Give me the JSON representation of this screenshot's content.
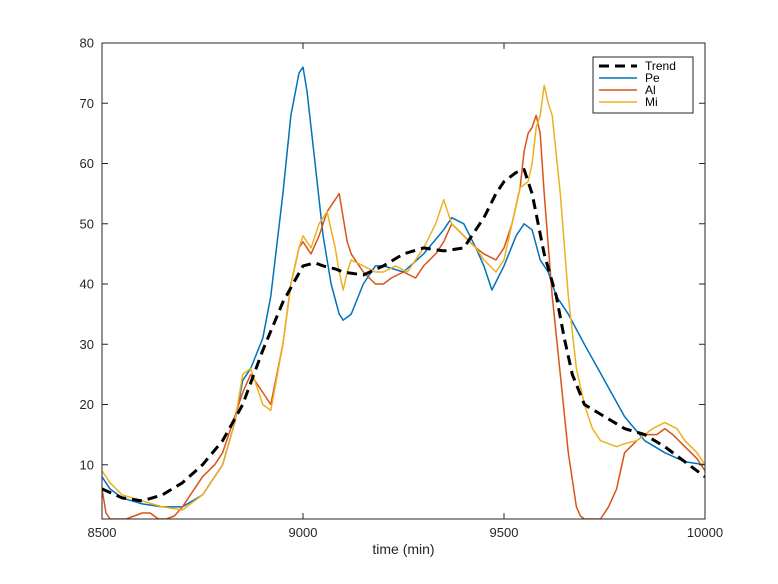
{
  "chart_data": {
    "type": "line",
    "title": "",
    "xlabel": "time (min)",
    "ylabel": "",
    "xlim": [
      8500,
      10000
    ],
    "ylim": [
      1,
      80
    ],
    "xticks": [
      8500,
      9000,
      9500,
      10000
    ],
    "yticks": [
      10,
      20,
      30,
      40,
      50,
      60,
      70,
      80
    ],
    "xtick_labels": [
      "8500",
      "9000",
      "9500",
      "10000"
    ],
    "ytick_labels": [
      "10",
      "20",
      "30",
      "40",
      "50",
      "60",
      "70",
      "80"
    ],
    "legend_position": "top-right",
    "grid": false,
    "series": [
      {
        "name": "Trend",
        "color": "#000000",
        "style": "dashed",
        "x": [
          8500,
          8550,
          8600,
          8650,
          8700,
          8750,
          8800,
          8850,
          8900,
          8950,
          9000,
          9030,
          9050,
          9080,
          9100,
          9150,
          9200,
          9250,
          9300,
          9350,
          9400,
          9420,
          9450,
          9480,
          9500,
          9530,
          9550,
          9570,
          9600,
          9630,
          9650,
          9670,
          9700,
          9750,
          9800,
          9850,
          9900,
          9950,
          10000
        ],
        "values": [
          6,
          4.5,
          4,
          5,
          7,
          10,
          14,
          20,
          29,
          37,
          43,
          43.5,
          43,
          42.5,
          42,
          41.5,
          43,
          45,
          46,
          45.5,
          46,
          48,
          51,
          55,
          57,
          58.5,
          59,
          55,
          45,
          38,
          31,
          25,
          20,
          18,
          16,
          15,
          13,
          10.5,
          8
        ]
      },
      {
        "name": "Pe",
        "color": "#0072BD",
        "style": "solid",
        "x": [
          8500,
          8520,
          8550,
          8600,
          8650,
          8700,
          8750,
          8800,
          8830,
          8850,
          8870,
          8900,
          8920,
          8950,
          8970,
          8990,
          9000,
          9010,
          9030,
          9050,
          9070,
          9090,
          9100,
          9120,
          9150,
          9180,
          9200,
          9250,
          9300,
          9350,
          9370,
          9400,
          9430,
          9450,
          9470,
          9500,
          9530,
          9550,
          9570,
          9590,
          9610,
          9630,
          9660,
          9700,
          9750,
          9800,
          9850,
          9900,
          9950,
          10000
        ],
        "values": [
          8,
          6,
          4.5,
          3.5,
          3,
          3,
          5,
          10,
          17,
          24,
          26,
          31,
          38,
          55,
          68,
          75,
          76,
          72,
          60,
          48,
          40,
          35,
          34,
          35,
          40,
          43,
          43,
          42,
          45,
          49,
          51,
          50,
          46,
          43,
          39,
          43,
          48,
          50,
          49,
          44,
          42,
          38,
          35,
          30,
          24,
          18,
          14,
          12,
          10.5,
          10
        ]
      },
      {
        "name": "Al",
        "color": "#D95319",
        "style": "solid",
        "x": [
          8500,
          8510,
          8520,
          8540,
          8560,
          8580,
          8600,
          8620,
          8640,
          8660,
          8680,
          8700,
          8720,
          8750,
          8780,
          8800,
          8830,
          8850,
          8870,
          8900,
          8920,
          8950,
          8970,
          8990,
          9000,
          9020,
          9040,
          9060,
          9080,
          9090,
          9100,
          9110,
          9120,
          9150,
          9180,
          9200,
          9220,
          9250,
          9280,
          9300,
          9330,
          9350,
          9370,
          9400,
          9430,
          9450,
          9480,
          9500,
          9520,
          9540,
          9550,
          9560,
          9570,
          9580,
          9590,
          9600,
          9620,
          9640,
          9660,
          9680,
          9690,
          9700,
          9720,
          9740,
          9760,
          9780,
          9800,
          9830,
          9850,
          9880,
          9900,
          9920,
          9950,
          9980,
          10000
        ],
        "values": [
          6,
          2,
          1,
          1,
          1,
          1.5,
          2,
          2,
          1,
          1,
          1.5,
          3,
          5,
          8,
          10,
          12,
          18,
          22,
          25,
          22,
          20,
          30,
          40,
          46,
          47,
          45,
          48,
          52,
          54,
          55,
          51,
          47,
          45,
          42,
          40,
          40,
          41,
          42,
          41,
          43,
          45,
          47,
          50,
          48,
          46,
          45,
          44,
          46,
          50,
          56,
          62,
          65,
          66,
          68,
          65,
          55,
          38,
          25,
          12,
          3,
          1.5,
          1,
          1,
          1,
          3,
          6,
          12,
          14,
          15,
          15,
          16,
          15,
          13,
          11,
          9
        ]
      },
      {
        "name": "Mi",
        "color": "#EDB120",
        "style": "solid",
        "x": [
          8500,
          8520,
          8550,
          8600,
          8650,
          8700,
          8750,
          8800,
          8830,
          8850,
          8870,
          8900,
          8920,
          8950,
          8970,
          8990,
          9000,
          9020,
          9040,
          9060,
          9080,
          9090,
          9100,
          9110,
          9120,
          9150,
          9180,
          9200,
          9230,
          9260,
          9300,
          9330,
          9350,
          9370,
          9400,
          9430,
          9450,
          9480,
          9500,
          9520,
          9540,
          9560,
          9570,
          9580,
          9590,
          9600,
          9610,
          9620,
          9640,
          9660,
          9680,
          9700,
          9720,
          9740,
          9760,
          9780,
          9800,
          9830,
          9850,
          9870,
          9900,
          9930,
          9950,
          9980,
          10000
        ],
        "values": [
          9,
          7,
          5,
          4,
          3,
          2.5,
          5,
          10,
          17,
          25,
          26,
          20,
          19,
          30,
          40,
          46,
          48,
          46,
          50,
          52,
          46,
          42,
          39,
          42,
          44,
          43,
          42,
          42,
          43,
          42,
          46,
          50,
          54,
          50,
          48,
          46,
          44,
          42,
          44,
          50,
          56,
          57,
          60,
          66,
          68,
          73,
          70,
          68,
          55,
          38,
          26,
          20,
          16,
          14,
          13.5,
          13,
          13.5,
          14,
          15,
          16,
          17,
          16,
          14,
          12,
          10
        ]
      }
    ]
  }
}
